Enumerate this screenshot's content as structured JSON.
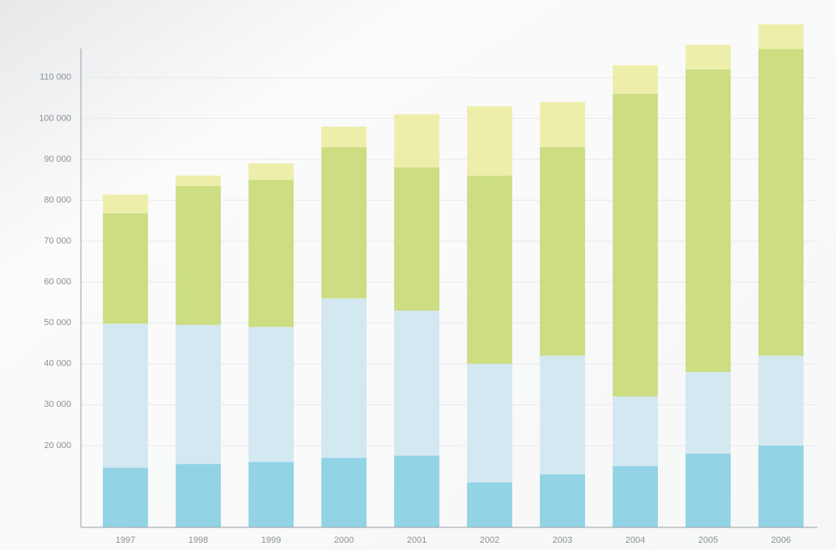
{
  "chart_data": {
    "type": "stacked_bar",
    "categories": [
      "1997",
      "1998",
      "1999",
      "2000",
      "2001",
      "2002",
      "2003",
      "2004",
      "2005",
      "2006"
    ],
    "series": [
      {
        "color": "#92d3e6",
        "values": [
          14600,
          15500,
          16000,
          17000,
          17500,
          11000,
          13000,
          15000,
          18000,
          20000
        ]
      },
      {
        "color": "#d3e8f1",
        "values": [
          35200,
          34000,
          33000,
          39000,
          35500,
          29000,
          29000,
          17000,
          20000,
          22000
        ]
      },
      {
        "color": "#ccdd82",
        "values": [
          27000,
          34000,
          36000,
          37000,
          35000,
          46000,
          51000,
          74000,
          74000,
          75000
        ]
      },
      {
        "color": "#eeeeab",
        "values": [
          4600,
          2500,
          4000,
          5000,
          13000,
          17000,
          11000,
          7000,
          6000,
          6000
        ]
      }
    ],
    "ylim": [
      0,
      125000
    ],
    "yticks": [
      {
        "value": 20000,
        "label": "20 000"
      },
      {
        "value": 30000,
        "label": "30 000"
      },
      {
        "value": 40000,
        "label": "40 000"
      },
      {
        "value": 50000,
        "label": "50 000"
      },
      {
        "value": 60000,
        "label": "60 000"
      },
      {
        "value": 70000,
        "label": "70 000"
      },
      {
        "value": 80000,
        "label": "80 000"
      },
      {
        "value": 90000,
        "label": "90 000"
      },
      {
        "value": 100000,
        "label": "100 000"
      },
      {
        "value": 110000,
        "label": "110 000"
      }
    ],
    "grid": true
  }
}
